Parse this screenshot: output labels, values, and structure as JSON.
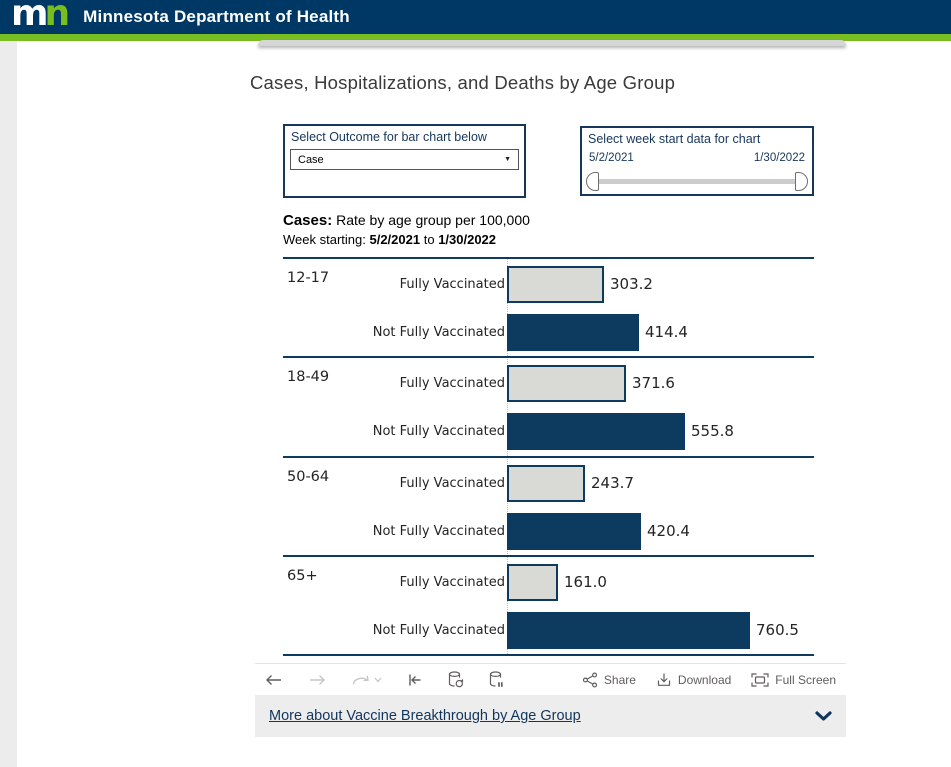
{
  "colors": {
    "brand_navy": "#003865",
    "brand_green": "#78be21",
    "chart_navy": "#0c3b5f",
    "bar_gray_fill": "#d9d9d6",
    "toolbar_icon_gray": "#605e5c",
    "toolbar_icon_disabled": "#c8c6c4",
    "link_navy": "#12355b"
  },
  "header": {
    "logo_m": "m",
    "logo_n": "n",
    "title": "Minnesota Department of Health"
  },
  "page": {
    "title": "Cases, Hospitalizations, and Deaths by Age Group"
  },
  "controls": {
    "outcome": {
      "label": "Select Outcome for bar chart below",
      "selected": "Case"
    },
    "week": {
      "label": "Select week start data for chart",
      "start": "5/2/2021",
      "end": "1/30/2022"
    }
  },
  "chart_header": {
    "outcome_label": "Cases:",
    "subtitle": "Rate by age group per 100,000",
    "week_label": "Week starting:",
    "week_start": "5/2/2021",
    "week_to": "to",
    "week_end": "1/30/2022"
  },
  "chart_data": {
    "type": "bar",
    "orientation": "horizontal",
    "unit": "rate per 100,000",
    "categories": [
      "12-17",
      "18-49",
      "50-64",
      "65+"
    ],
    "series": [
      {
        "name": "Fully Vaccinated",
        "values": [
          303.2,
          371.6,
          243.7,
          161.0
        ],
        "value_labels": [
          "303.2",
          "371.6",
          "243.7",
          "161.0"
        ],
        "fill": "#d9d9d6",
        "border": "#0c3b5f"
      },
      {
        "name": "Not Fully Vaccinated",
        "values": [
          414.4,
          555.8,
          420.4,
          760.5
        ],
        "value_labels": [
          "414.4",
          "555.8",
          "420.4",
          "760.5"
        ],
        "fill": "#0c3b5f",
        "border": "#0c3b5f"
      }
    ],
    "value_label_position": "outside-end",
    "gridlines": false
  },
  "toolbar": {
    "share_label": "Share",
    "download_label": "Download",
    "fullscreen_label": "Full Screen"
  },
  "footer": {
    "link_label": "More about Vaccine Breakthrough by Age Group"
  }
}
